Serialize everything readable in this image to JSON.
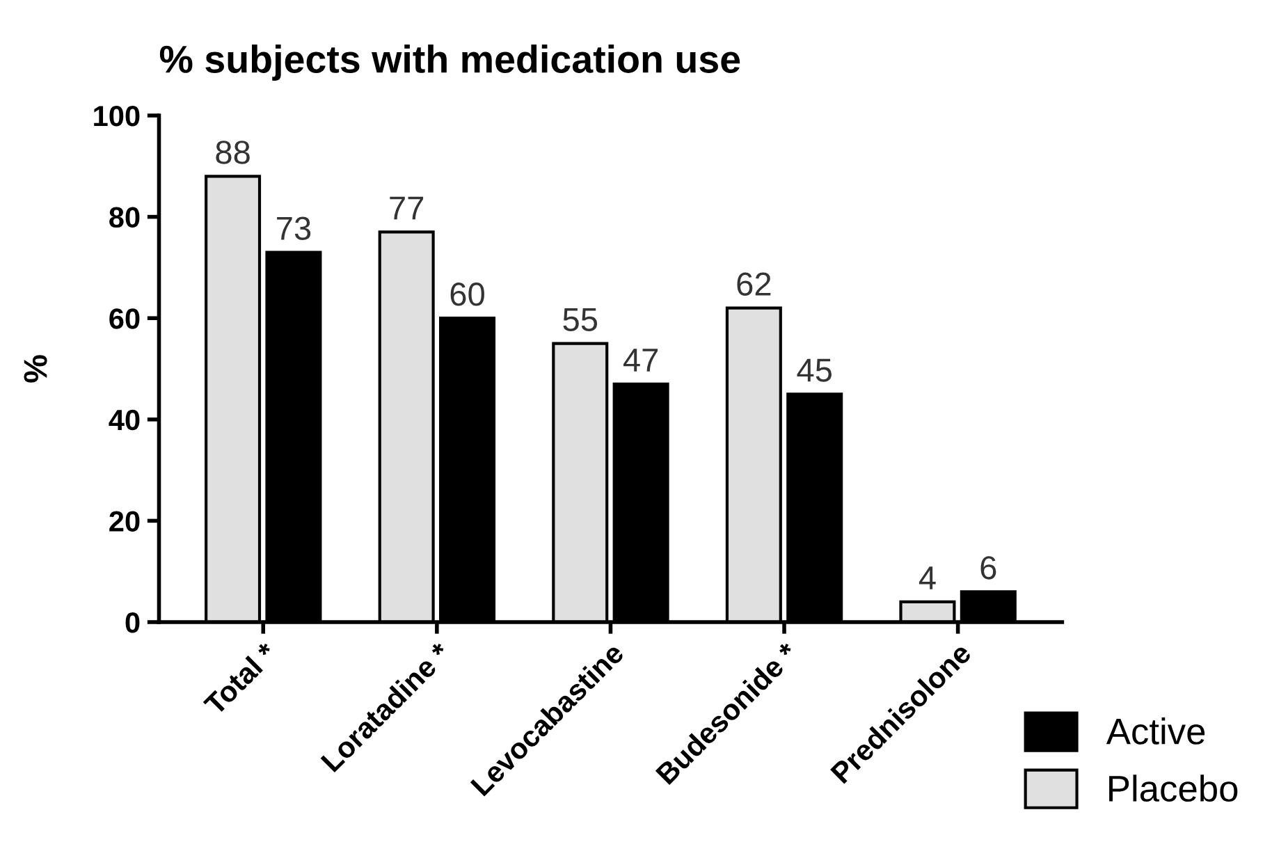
{
  "chart_data": {
    "type": "bar",
    "title": "% subjects with medication use",
    "ylabel": "%",
    "categories": [
      "Total *",
      "Loratadine *",
      "Levocabastine",
      "Budesonide *",
      "Prednisolone"
    ],
    "series": [
      {
        "name": "Placebo",
        "color": "#e0e0e0",
        "values": [
          88,
          77,
          55,
          62,
          4
        ]
      },
      {
        "name": "Active",
        "color": "#000000",
        "values": [
          73,
          60,
          47,
          45,
          6
        ]
      }
    ],
    "ylim": [
      0,
      100
    ],
    "yticks": [
      0,
      20,
      40,
      60,
      80,
      100
    ],
    "grid": false,
    "legend": "bottom right",
    "data_labels": true
  }
}
